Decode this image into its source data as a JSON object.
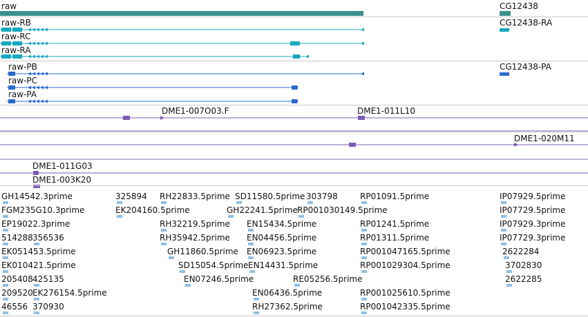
{
  "colors": {
    "gene": "#3a8f8c",
    "transcript_a": "#18a8c0",
    "transcript_b": "#2a6ad0",
    "clone": "#7c5bb5",
    "est": "#8fbfe4",
    "separator": "#c9c9c9"
  },
  "gene_track": {
    "labels": [
      "raw",
      "CG12438"
    ]
  },
  "transcripts_a": {
    "labels": [
      "CG12438-RA",
      "raw-RB",
      "raw-RC",
      "raw-RA"
    ]
  },
  "transcripts_b": {
    "labels": [
      "CG12438-PA",
      "raw-PB",
      "raw-PC",
      "raw-PA"
    ]
  },
  "clones": {
    "labels": [
      "DME1-007O03.F",
      "DME1-011L10",
      "DME1-020M11",
      "DME1-011G03",
      "DME1-003K20"
    ]
  },
  "ests": {
    "labels": [
      "GH14542.3prime",
      "325894",
      "RH22833.5prime",
      "SD11580.5prime",
      "303798",
      "RP01091.5prime",
      "IP07929.5prime",
      "FGM235G10.3prime",
      "EK204160.5prime",
      "GH22241.5prime",
      "RP001030149.5prime",
      "IP07729.5prime",
      "EP19022.3prime",
      "RH32219.5prime",
      "EN15434.5prime",
      "RP01241.5prime",
      "IP07929.3prime",
      "514288",
      "356536",
      "RH35942.5prime",
      "EN04456.5prime",
      "RP01311.5prime",
      "IP07729.3prime",
      "EK051453.5prime",
      "GH11860.5prime",
      "EN06923.5prime",
      "RP001047165.5prime",
      "2622284",
      "EK010421.5prime",
      "SD15054.5prime",
      "EN14431.5prime",
      "RP001029304.5prime",
      "3702830",
      "205408",
      "425135",
      "EN07246.5prime",
      "RE05256.5prime",
      "2622285",
      "209520",
      "EK276154.5prime",
      "EN06436.5prime",
      "RP001025610.5prime",
      "46556",
      "370930",
      "RH27362.5prime",
      "RP001042335.5prime"
    ]
  }
}
